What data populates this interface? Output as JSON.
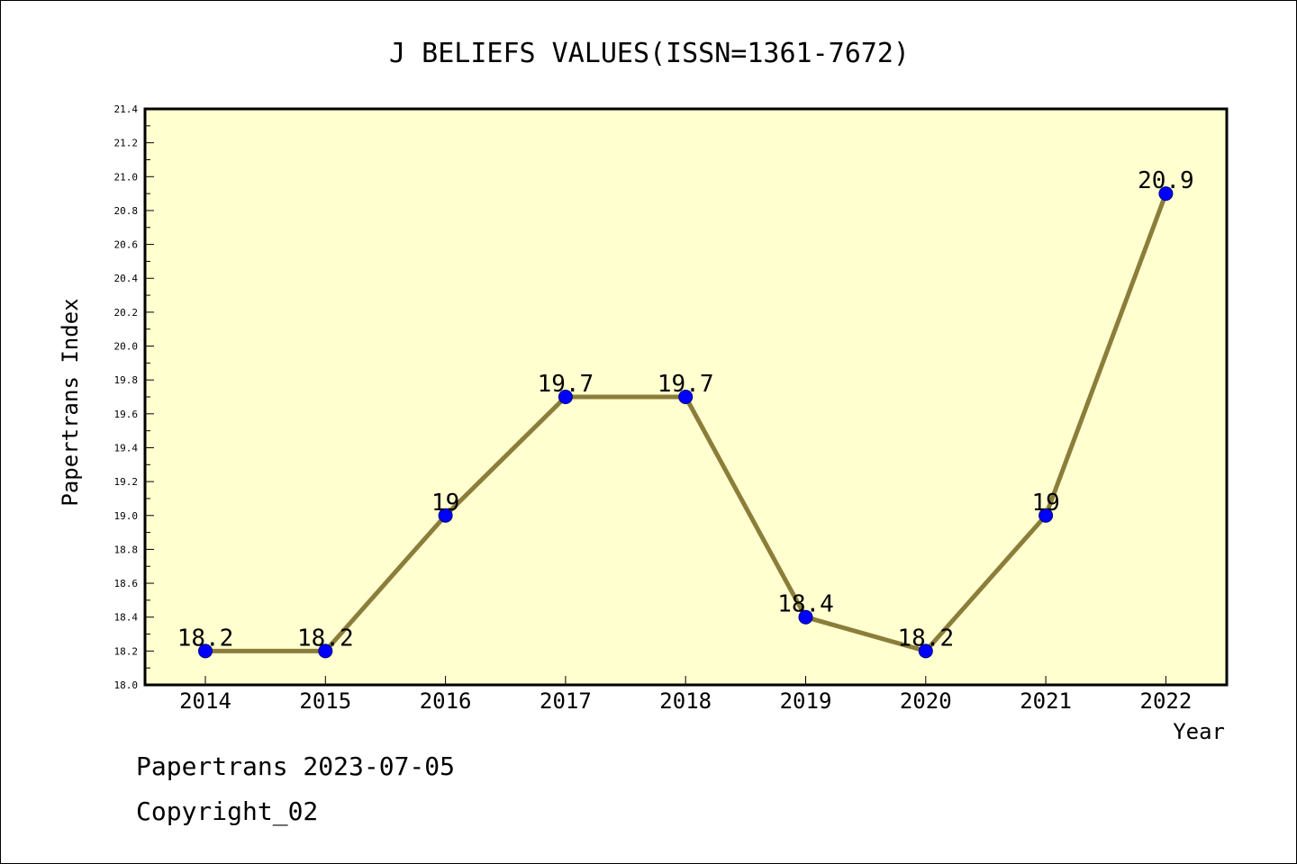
{
  "chart_data": {
    "type": "line",
    "title": "J BELIEFS VALUES(ISSN=1361-7672)",
    "xlabel": "Year",
    "ylabel": "Papertrans Index",
    "categories": [
      "2014",
      "2015",
      "2016",
      "2017",
      "2018",
      "2019",
      "2020",
      "2021",
      "2022"
    ],
    "values": [
      18.2,
      18.2,
      19,
      19.7,
      19.7,
      18.4,
      18.2,
      19,
      20.9
    ],
    "data_labels": [
      "18.2",
      "18.2",
      "19",
      "19.7",
      "19.7",
      "18.4",
      "18.2",
      "19",
      "20.9"
    ],
    "ylim": [
      18.0,
      21.4
    ],
    "yticks": [
      "18.0",
      "18.2",
      "18.4",
      "18.6",
      "18.8",
      "19.0",
      "19.2",
      "19.4",
      "19.6",
      "19.8",
      "20.0",
      "20.2",
      "20.4",
      "20.6",
      "20.8",
      "21.0",
      "21.2",
      "21.4"
    ],
    "grid": false,
    "legend": "none",
    "colors": {
      "line": "#8b7d3a",
      "marker": "#0000ff",
      "plot_background": "#ffffd0",
      "axis": "#000000"
    }
  },
  "footer": {
    "date_line": "Papertrans 2023-07-05",
    "copyright": "Copyright_02"
  }
}
